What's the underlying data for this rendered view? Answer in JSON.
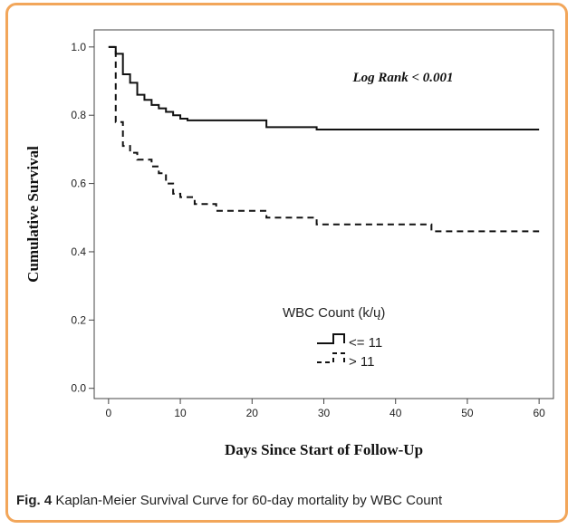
{
  "chart_data": {
    "type": "line",
    "step": true,
    "title": "",
    "xlabel": "Days Since Start of Follow-Up",
    "ylabel": "Cumulative Survival",
    "xlim": [
      -2,
      62
    ],
    "ylim": [
      -0.03,
      1.05
    ],
    "xticks": [
      0,
      10,
      20,
      30,
      40,
      50,
      60
    ],
    "yticks": [
      0.0,
      0.2,
      0.4,
      0.6,
      0.8,
      1.0
    ],
    "ytick_labels": [
      "0.0",
      "0.2",
      "0.4",
      "0.6",
      "0.8",
      "1.0"
    ],
    "annotation": "Log Rank < 0.001",
    "legend": {
      "title": "WBC Count (k/ų)",
      "position": "lower-center"
    },
    "series": [
      {
        "name": "<= 11",
        "style": "solid",
        "x": [
          0,
          1,
          2,
          3,
          4,
          5,
          6,
          7,
          8,
          9,
          10,
          11,
          22,
          29,
          60
        ],
        "y": [
          1.0,
          0.98,
          0.92,
          0.895,
          0.86,
          0.845,
          0.83,
          0.82,
          0.81,
          0.8,
          0.79,
          0.785,
          0.765,
          0.758,
          0.758
        ]
      },
      {
        "name": "> 11",
        "style": "dashed",
        "x": [
          0,
          1,
          2,
          3,
          4,
          6,
          7,
          8,
          9,
          10,
          12,
          15,
          22,
          29,
          45,
          60
        ],
        "y": [
          1.0,
          0.78,
          0.71,
          0.69,
          0.67,
          0.65,
          0.63,
          0.6,
          0.57,
          0.56,
          0.54,
          0.52,
          0.5,
          0.48,
          0.46,
          0.46
        ]
      }
    ],
    "colors": {
      "line": "#111111",
      "frame": "#f2a65a",
      "axis": "#444444"
    }
  },
  "caption": {
    "label": "Fig. 4",
    "text": " Kaplan-Meier Survival Curve for 60-day mortality by WBC Count"
  }
}
